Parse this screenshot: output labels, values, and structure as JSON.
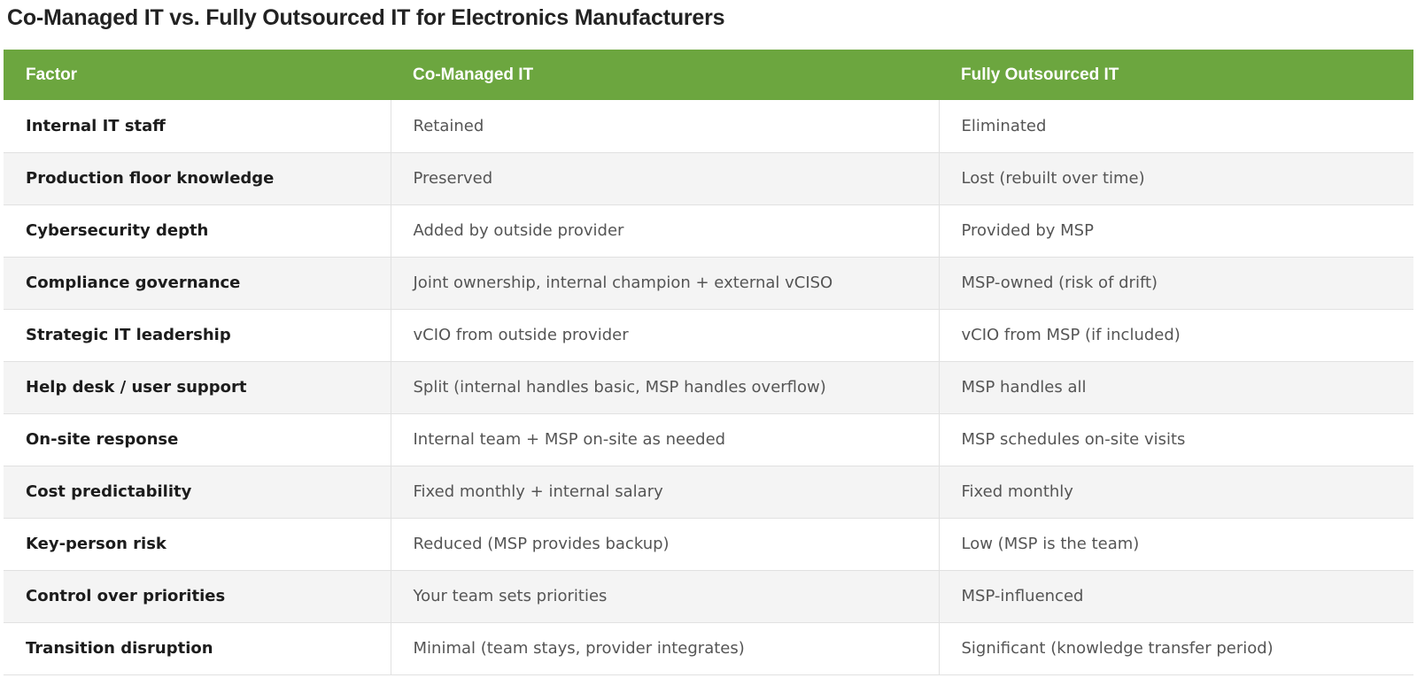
{
  "title": "Co-Managed IT vs. Fully Outsourced IT for Electronics Manufacturers",
  "colors": {
    "header_bg": "#6ca63f",
    "header_text": "#ffffff",
    "row_alt": "#f4f4f4"
  },
  "table": {
    "headers": [
      "Factor",
      "Co-Managed IT",
      "Fully Outsourced IT"
    ],
    "rows": [
      [
        "Internal IT staff",
        "Retained",
        "Eliminated"
      ],
      [
        "Production floor knowledge",
        "Preserved",
        "Lost (rebuilt over time)"
      ],
      [
        "Cybersecurity depth",
        "Added by outside provider",
        "Provided by MSP"
      ],
      [
        "Compliance governance",
        "Joint ownership, internal champion + external vCISO",
        "MSP-owned (risk of drift)"
      ],
      [
        "Strategic IT leadership",
        "vCIO from outside provider",
        "vCIO from MSP (if included)"
      ],
      [
        "Help desk / user support",
        "Split (internal handles basic, MSP handles overflow)",
        "MSP handles all"
      ],
      [
        "On-site response",
        "Internal team + MSP on-site as needed",
        "MSP schedules on-site visits"
      ],
      [
        "Cost predictability",
        "Fixed monthly + internal salary",
        "Fixed monthly"
      ],
      [
        "Key-person risk",
        "Reduced (MSP provides backup)",
        "Low (MSP is the team)"
      ],
      [
        "Control over priorities",
        "Your team sets priorities",
        "MSP-influenced"
      ],
      [
        "Transition disruption",
        "Minimal (team stays, provider integrates)",
        "Significant (knowledge transfer period)"
      ]
    ]
  }
}
